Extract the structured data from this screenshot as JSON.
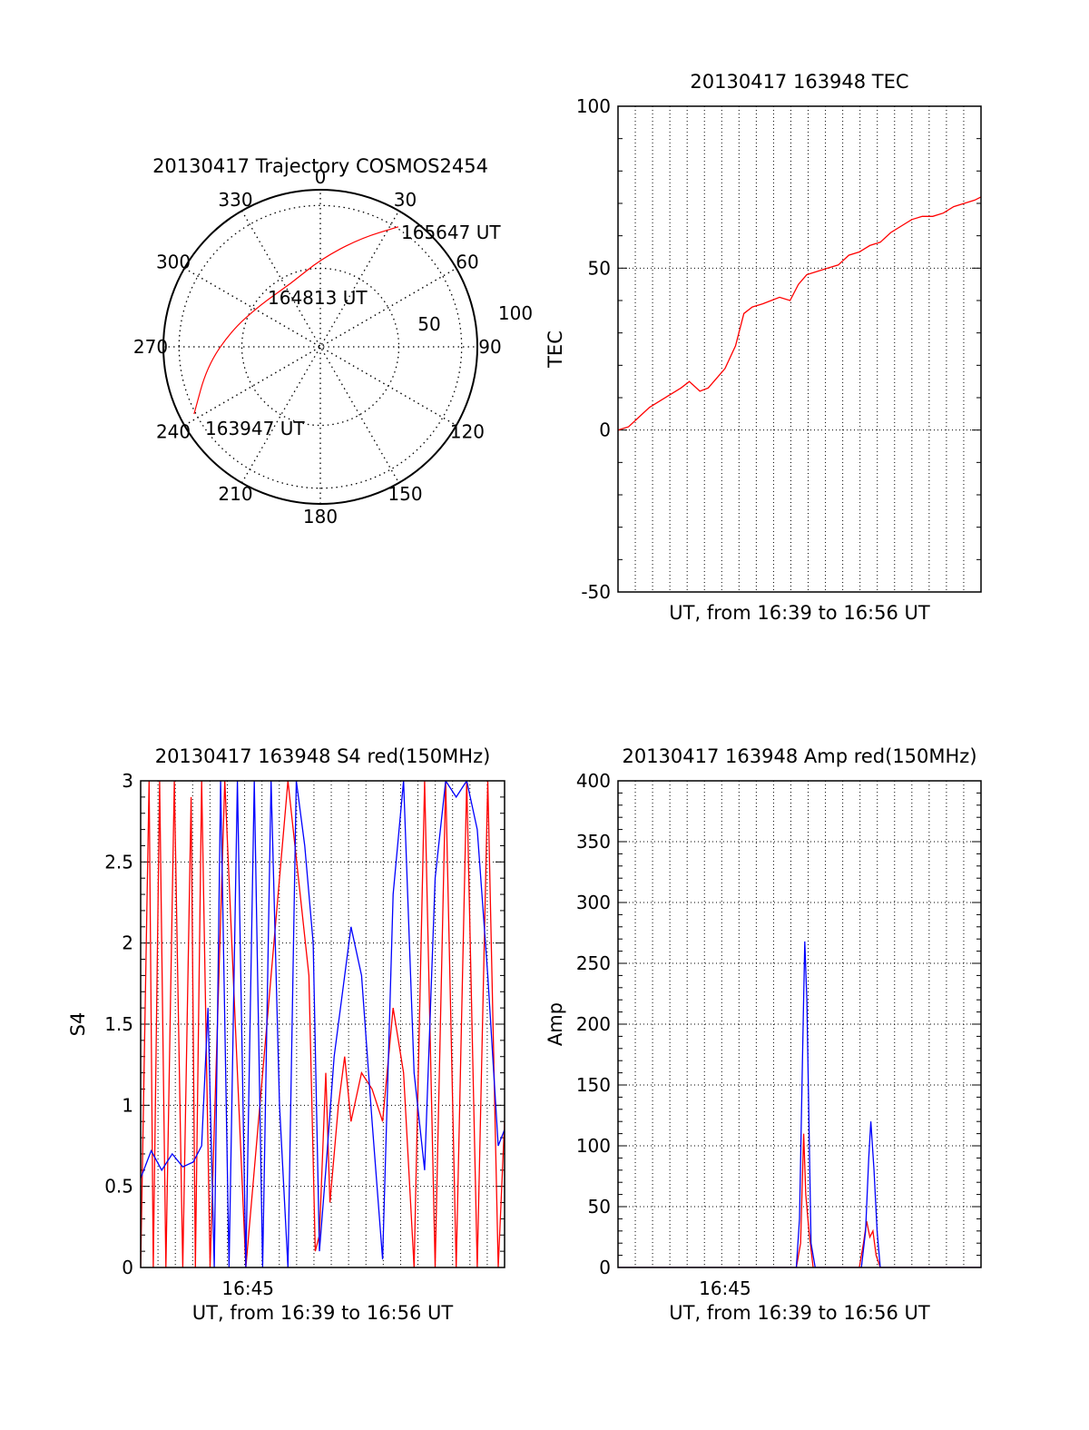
{
  "chart_data": [
    {
      "type": "polar",
      "title": "20130417 Trajectory COSMOS2454",
      "azimuth_labels": [
        "0",
        "30",
        "60",
        "90",
        "120",
        "150",
        "180",
        "210",
        "240",
        "270",
        "300",
        "330"
      ],
      "radius_labels": [
        "50",
        "100"
      ],
      "series": [
        {
          "color": "#ff0000",
          "points": [
            {
              "az": 242,
              "zen": 82
            },
            {
              "az": 260,
              "zen": 66
            },
            {
              "az": 280,
              "zen": 52
            },
            {
              "az": 305,
              "zen": 42
            },
            {
              "az": 335,
              "zen": 40
            },
            {
              "az": 0,
              "zen": 50
            },
            {
              "az": 20,
              "zen": 66
            },
            {
              "az": 33,
              "zen": 82
            }
          ]
        }
      ],
      "annotations": [
        "163947 UT",
        "164813 UT",
        "165647 UT"
      ]
    },
    {
      "type": "line",
      "title": "20130417 163948 TEC",
      "xlabel": "UT, from 16:39 to 16:56 UT",
      "ylabel": "TEC",
      "xlim": [
        0,
        17.3
      ],
      "ylim": [
        -50,
        100
      ],
      "yticks": [
        "-50",
        "0",
        "50",
        "100"
      ],
      "xticks": [],
      "series": [
        {
          "color": "#ff0000",
          "x": [
            0.0,
            0.5,
            1.0,
            1.5,
            2.0,
            2.5,
            3.0,
            3.4,
            3.9,
            4.3,
            4.7,
            5.1,
            5.6,
            6.0,
            6.4,
            6.9,
            7.3,
            7.7,
            8.2,
            8.6,
            9.0,
            9.5,
            10.0,
            10.5,
            11.0,
            11.5,
            12.0,
            12.5,
            13.0,
            13.5,
            14.0,
            14.5,
            15.0,
            15.5,
            16.0,
            16.5,
            17.0,
            17.3
          ],
          "y": [
            0,
            1,
            4,
            7,
            9,
            11,
            13,
            15,
            12,
            13,
            16,
            19,
            26,
            36,
            38,
            39,
            40,
            41,
            40,
            45,
            48,
            49,
            50,
            51,
            54,
            55,
            57,
            58,
            61,
            63,
            65,
            66,
            66,
            67,
            69,
            70,
            71,
            72
          ]
        }
      ]
    },
    {
      "type": "line",
      "title": "20130417 163948 S4 red(150MHz)",
      "xlabel": "UT, from 16:39 to 16:56 UT",
      "ylabel": "S4",
      "xlim": [
        0,
        17.3
      ],
      "ylim": [
        0,
        3
      ],
      "yticks": [
        "0",
        "0.5",
        "1",
        "1.5",
        "2",
        "2.5",
        "3"
      ],
      "xticks": [
        {
          "x": 5.1,
          "label": "16:45"
        }
      ],
      "series": [
        {
          "color": "#ff0000",
          "x": [
            0.0,
            0.4,
            0.6,
            0.9,
            1.2,
            1.6,
            2.0,
            2.4,
            2.6,
            2.9,
            3.3,
            4.0,
            5.0,
            7.0,
            8.0,
            8.3,
            8.5,
            8.8,
            9.0,
            9.4,
            9.7,
            10.0,
            10.5,
            11.0,
            11.5,
            12.0,
            12.5,
            13.0,
            13.5,
            14.0,
            14.5,
            15.0,
            15.5,
            16.0,
            16.5,
            17.0,
            17.3
          ],
          "y": [
            0.0,
            3.0,
            0.0,
            3.0,
            0.0,
            3.0,
            0.0,
            2.9,
            0.0,
            3.0,
            0.0,
            3.0,
            0.0,
            3.0,
            1.8,
            0.1,
            0.2,
            1.2,
            0.4,
            1.0,
            1.3,
            0.9,
            1.2,
            1.1,
            0.9,
            1.6,
            1.2,
            0.0,
            3.0,
            0.0,
            3.0,
            0.0,
            3.0,
            0.0,
            3.0,
            0.0,
            0.9
          ]
        },
        {
          "color": "#0000ff",
          "x": [
            0.0,
            0.5,
            1.0,
            1.5,
            2.0,
            2.5,
            2.9,
            3.2,
            3.5,
            3.8,
            4.2,
            4.6,
            5.0,
            5.4,
            5.8,
            6.2,
            6.6,
            7.0,
            7.4,
            7.8,
            8.2,
            8.5,
            8.8,
            9.2,
            9.6,
            10.0,
            10.5,
            11.0,
            11.5,
            12.0,
            12.5,
            13.0,
            13.5,
            14.0,
            14.5,
            15.0,
            15.5,
            16.0,
            16.5,
            17.0,
            17.3
          ],
          "y": [
            0.55,
            0.72,
            0.6,
            0.7,
            0.62,
            0.65,
            0.75,
            1.6,
            0.0,
            3.0,
            0.0,
            3.0,
            0.0,
            3.0,
            0.0,
            3.0,
            1.0,
            0.0,
            3.0,
            2.6,
            2.0,
            0.1,
            0.6,
            1.3,
            1.7,
            2.1,
            1.8,
            0.9,
            0.05,
            2.3,
            3.0,
            1.2,
            0.6,
            2.4,
            3.0,
            2.9,
            3.0,
            2.7,
            1.8,
            0.75,
            0.85
          ]
        }
      ]
    },
    {
      "type": "line",
      "title": "20130417 163948 Amp red(150MHz)",
      "xlabel": "UT, from 16:39 to 16:56 UT",
      "ylabel": "Amp",
      "xlim": [
        0,
        17.3
      ],
      "ylim": [
        0,
        400
      ],
      "yticks": [
        "0",
        "50",
        "100",
        "150",
        "200",
        "250",
        "300",
        "350",
        "400"
      ],
      "xticks": [
        {
          "x": 5.1,
          "label": "16:45"
        }
      ],
      "series": [
        {
          "color": "#ff0000",
          "x": [
            0.0,
            8.5,
            8.7,
            8.85,
            8.95,
            9.1,
            9.3,
            11.5,
            11.7,
            11.85,
            12.0,
            12.15,
            12.3,
            12.5,
            17.3
          ],
          "y": [
            0,
            0,
            20,
            110,
            60,
            30,
            0,
            0,
            20,
            38,
            25,
            30,
            10,
            0,
            0
          ]
        },
        {
          "color": "#0000ff",
          "x": [
            0.0,
            8.5,
            8.65,
            8.8,
            8.9,
            9.0,
            9.1,
            9.2,
            9.4,
            11.6,
            11.8,
            11.95,
            12.05,
            12.2,
            12.35,
            12.5,
            17.3
          ],
          "y": [
            0,
            0,
            40,
            180,
            268,
            220,
            120,
            20,
            0,
            0,
            30,
            90,
            120,
            80,
            30,
            0,
            0
          ]
        }
      ]
    }
  ]
}
